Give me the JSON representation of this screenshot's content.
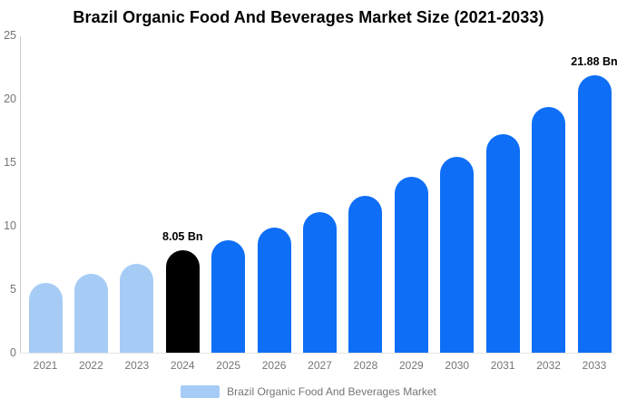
{
  "title": "Brazil Organic Food And Beverages Market Size (2021-2033)",
  "chart_data": {
    "type": "bar",
    "title": "Brazil Organic Food And Beverages Market Size (2021-2033)",
    "categories": [
      "2021",
      "2022",
      "2023",
      "2024",
      "2025",
      "2026",
      "2027",
      "2028",
      "2029",
      "2030",
      "2031",
      "2032",
      "2033"
    ],
    "values": [
      5.5,
      6.2,
      7.0,
      8.05,
      8.85,
      9.85,
      11.05,
      12.35,
      13.85,
      15.45,
      17.25,
      19.35,
      21.88
    ],
    "unit": "Bn",
    "bar_colors": [
      "#a6ccf5",
      "#a6ccf5",
      "#a6ccf5",
      "#000000",
      "#0e6ef5",
      "#0e6ef5",
      "#0e6ef5",
      "#0e6ef5",
      "#0e6ef5",
      "#0e6ef5",
      "#0e6ef5",
      "#0e6ef5",
      "#0e6ef5"
    ],
    "annotations": [
      {
        "index": 3,
        "text": "8.05 Bn"
      },
      {
        "index": 12,
        "text": "21.88 Bn"
      }
    ],
    "xlabel": "",
    "ylabel": "",
    "ylim": [
      0,
      25
    ],
    "yticks": [
      0,
      5,
      10,
      15,
      20,
      25
    ],
    "grid": false,
    "axis_text_color": "#757575",
    "legend": {
      "position": "bottom",
      "label": "Brazil Organic Food And Beverages Market",
      "swatch_color": "#a6ccf5"
    }
  }
}
